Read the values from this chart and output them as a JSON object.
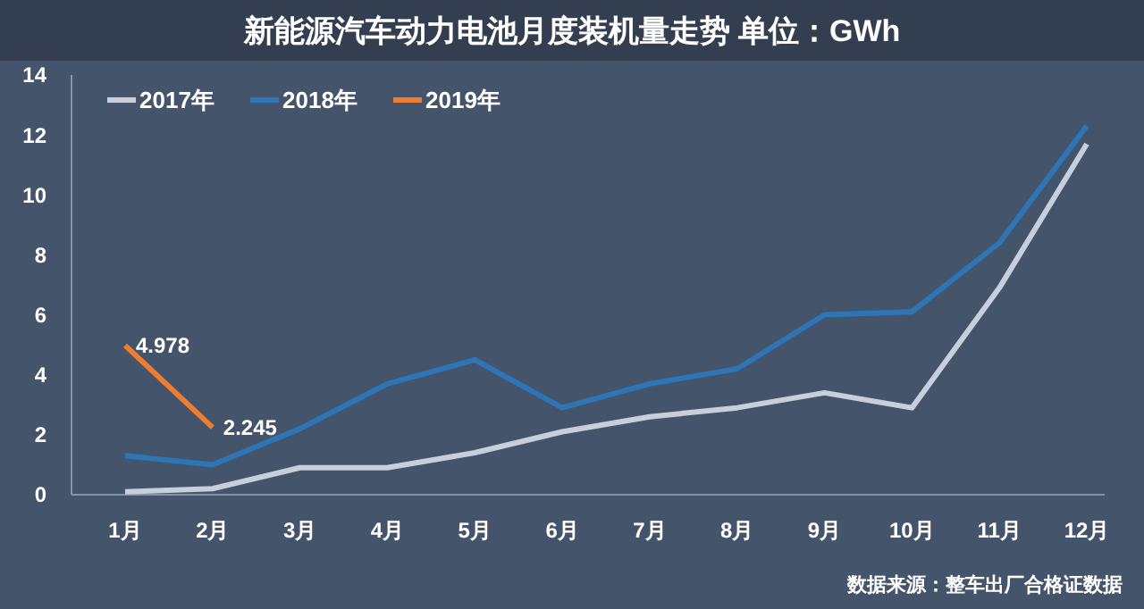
{
  "chart_data": {
    "type": "line",
    "title": "新能源汽车动力电池月度装机量走势  单位：GWh",
    "categories": [
      "1月",
      "2月",
      "3月",
      "4月",
      "5月",
      "6月",
      "7月",
      "8月",
      "9月",
      "10月",
      "11月",
      "12月"
    ],
    "series": [
      {
        "name": "2017年",
        "color": "#c8cfdc",
        "values": [
          0.1,
          0.2,
          0.9,
          0.9,
          1.4,
          2.1,
          2.6,
          2.9,
          3.4,
          2.9,
          6.9,
          11.7
        ]
      },
      {
        "name": "2018年",
        "color": "#2e75b6",
        "values": [
          1.3,
          1.0,
          2.2,
          3.7,
          4.5,
          2.9,
          3.7,
          4.2,
          6.0,
          6.1,
          8.4,
          12.3
        ]
      },
      {
        "name": "2019年",
        "color": "#ed7d31",
        "values": [
          4.978,
          2.245,
          null,
          null,
          null,
          null,
          null,
          null,
          null,
          null,
          null,
          null
        ],
        "value_labels": [
          "4.978",
          "2.245",
          null,
          null,
          null,
          null,
          null,
          null,
          null,
          null,
          null,
          null
        ]
      }
    ],
    "ylim": [
      0,
      14
    ],
    "yticks": [
      0,
      2,
      4,
      6,
      8,
      10,
      12,
      14
    ],
    "grid": false,
    "legend": "top left",
    "marker": "none",
    "line_style": "solid",
    "annotations": [
      "数据来源：整车出厂合格证数据"
    ]
  }
}
